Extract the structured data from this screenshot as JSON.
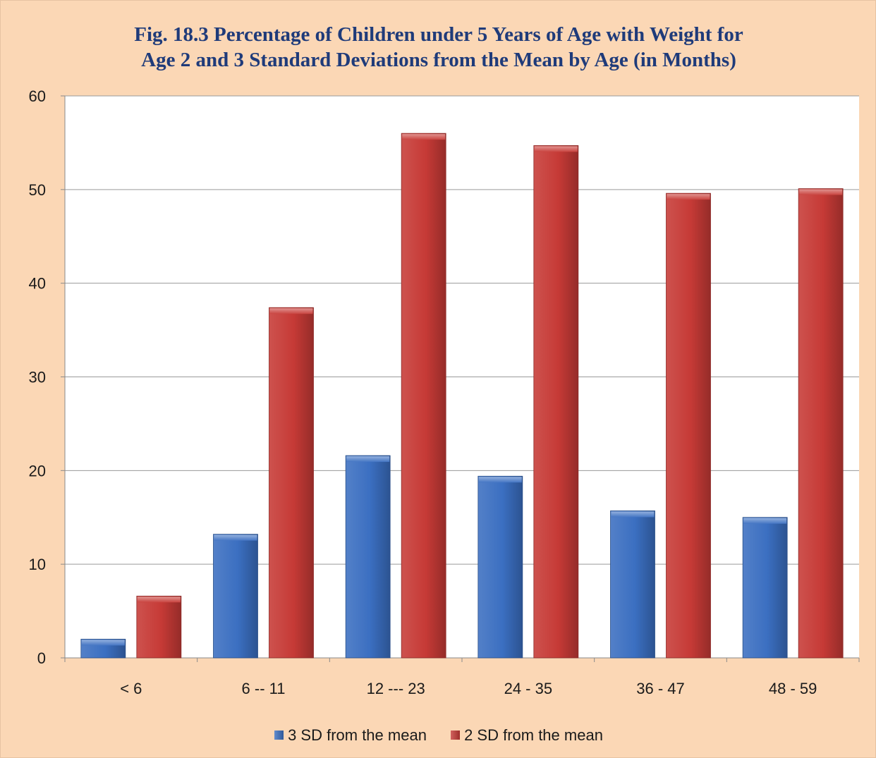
{
  "chart_data": {
    "type": "bar",
    "title_line1": "Fig. 18.3  Percentage of Children  under 5 Years of Age with Weight for",
    "title_line2": "Age 2 and 3 Standard Deviations from the Mean by Age (in Months)",
    "xlabel": "",
    "ylabel": "",
    "categories": [
      "< 6",
      "6 -- 11",
      "12 --- 23",
      "24 - 35",
      "36 - 47",
      "48 - 59"
    ],
    "series": [
      {
        "name": "3 SD from the mean",
        "color": "#3b6fc1",
        "values": [
          2.0,
          13.2,
          21.6,
          19.4,
          15.7,
          15.0
        ]
      },
      {
        "name": "2 SD from the mean",
        "color": "#c63a36",
        "values": [
          6.6,
          37.4,
          56.0,
          54.7,
          49.6,
          50.1
        ]
      }
    ],
    "ylim": [
      0,
      60
    ],
    "yticks": [
      0,
      10,
      20,
      30,
      40,
      50,
      60
    ],
    "grid": true,
    "legend_position": "bottom"
  }
}
